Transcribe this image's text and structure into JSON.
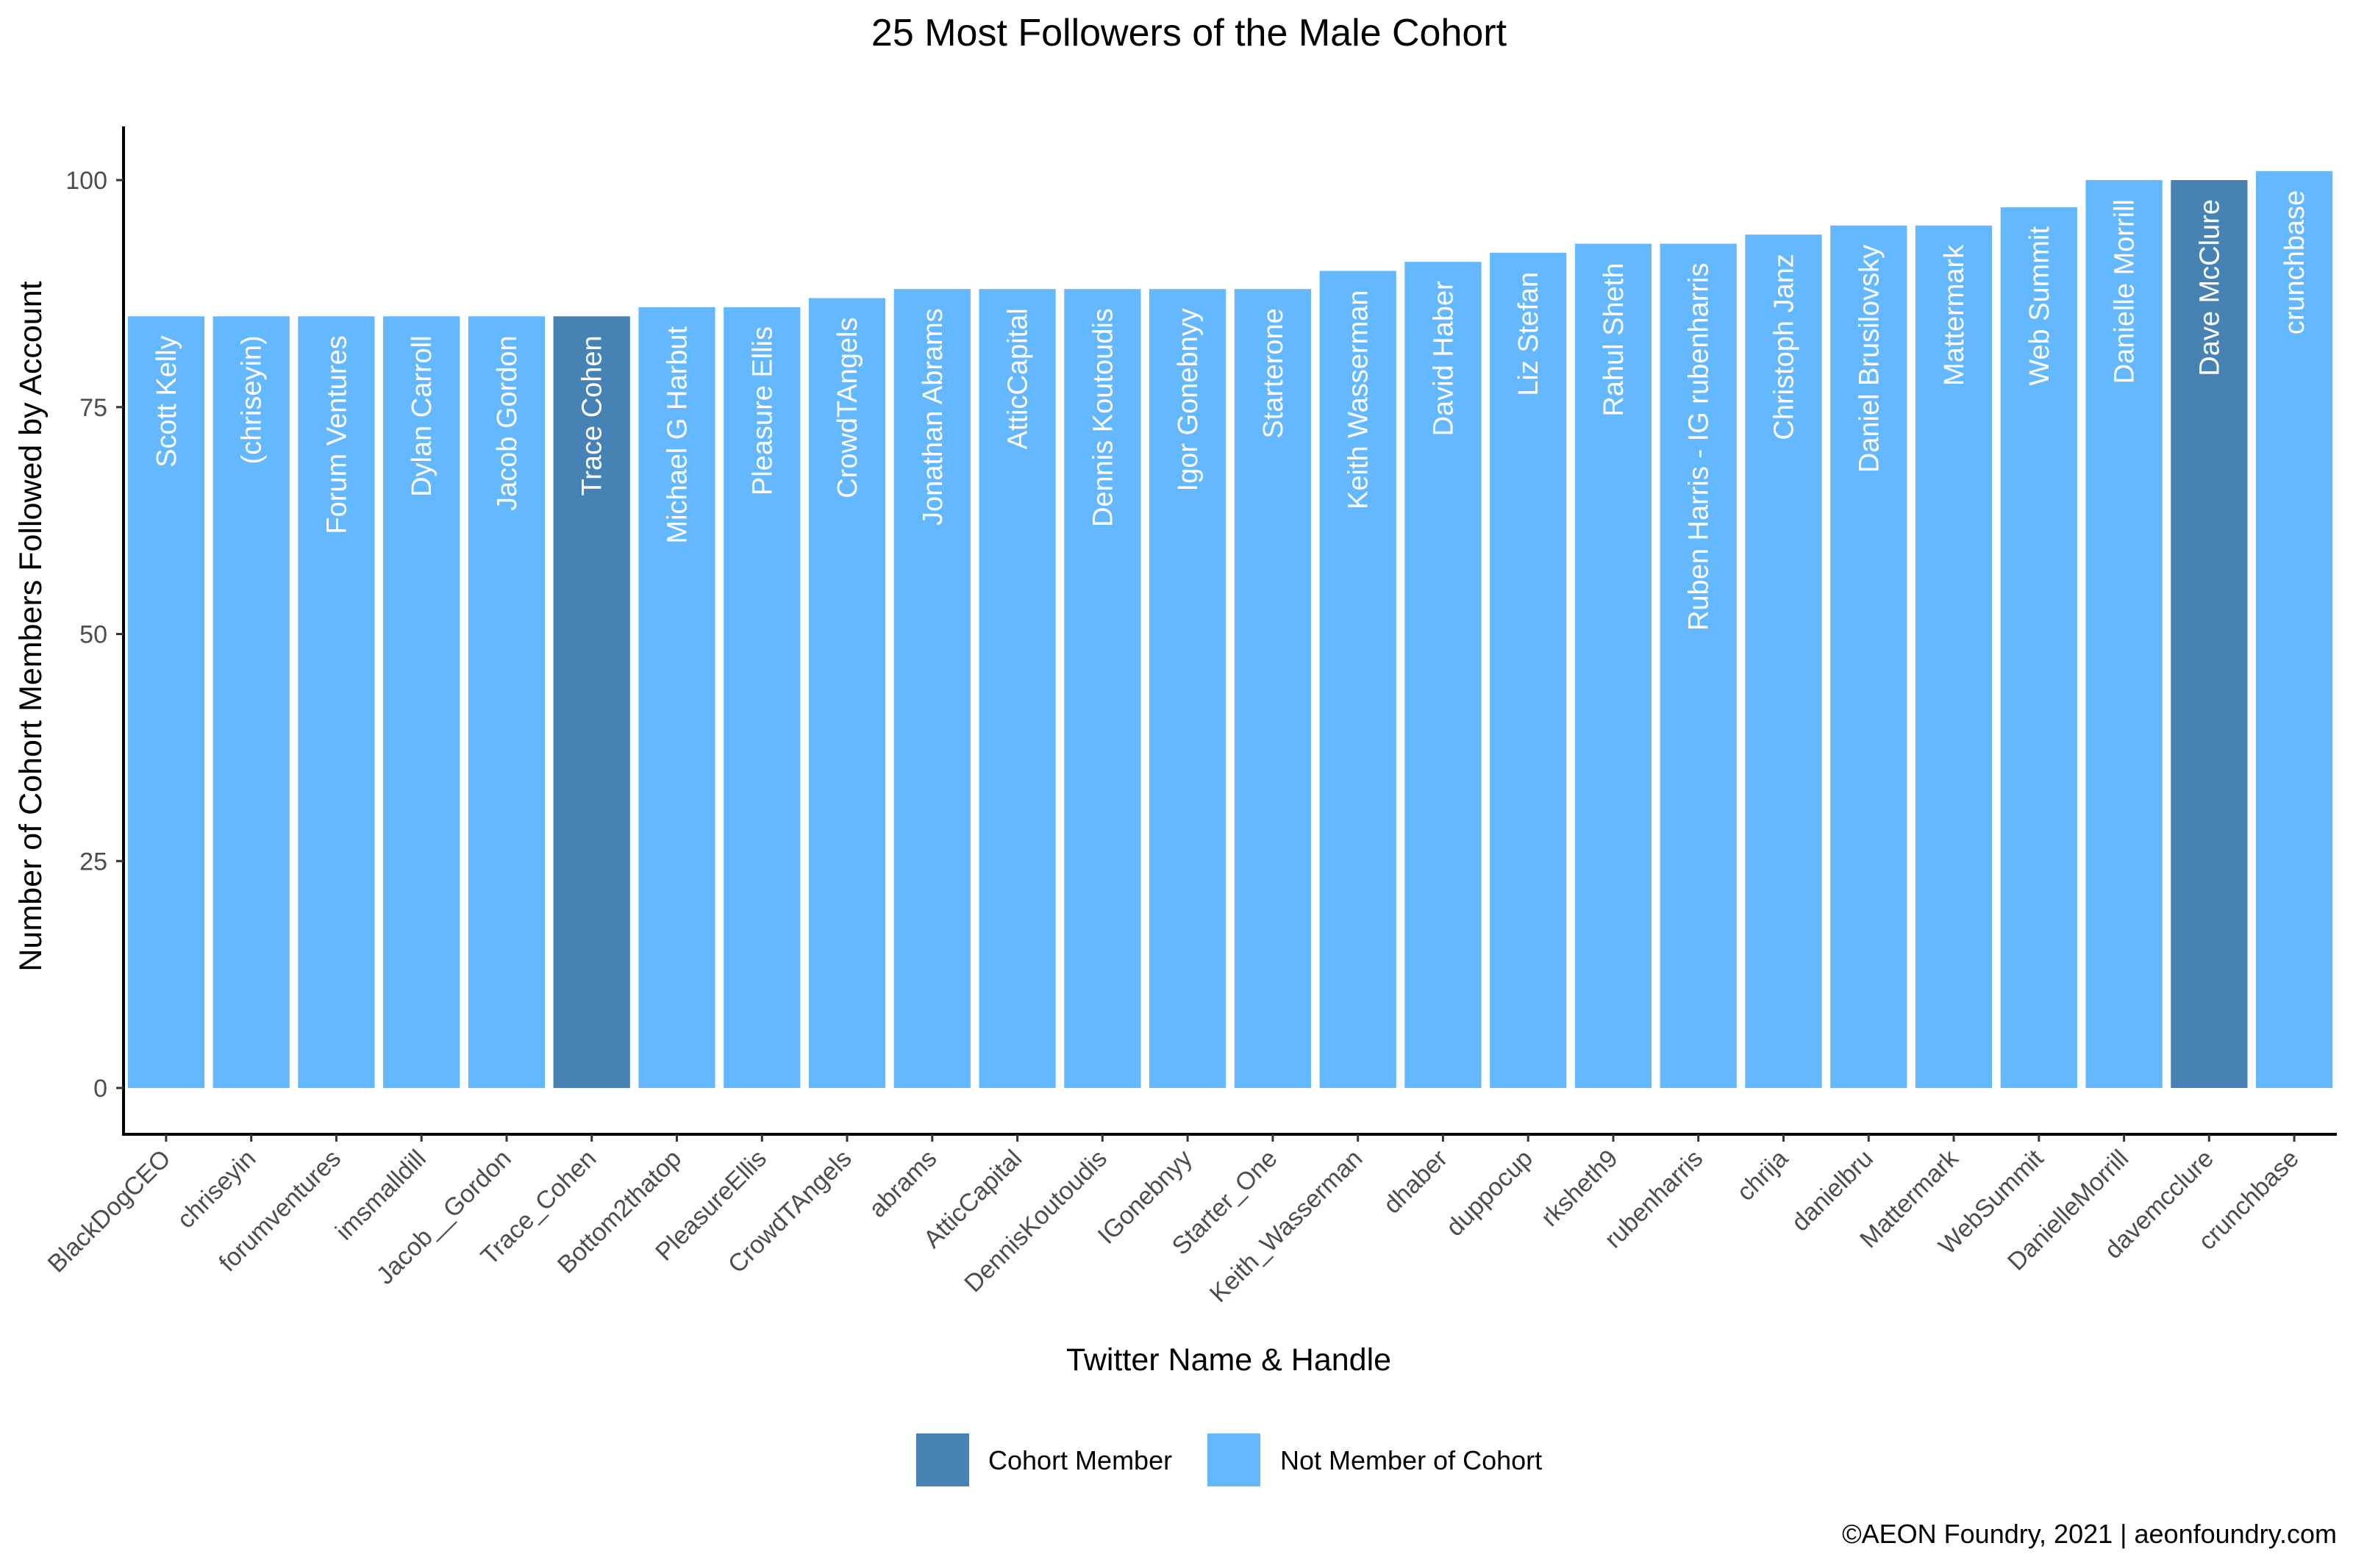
{
  "chart_data": {
    "type": "bar",
    "title": "25 Most Followers of the Male Cohort",
    "xlabel": "Twitter Name & Handle",
    "ylabel": "Number of Cohort Members Followed by Account",
    "ylim": [
      0,
      105
    ],
    "yticks": [
      0,
      25,
      50,
      75,
      100
    ],
    "grid": false,
    "legend_position": "bottom",
    "colors": {
      "cohort": "#4682B4",
      "not_cohort": "#63B8FF"
    },
    "legend": [
      {
        "key": "cohort",
        "label": "Cohort Member"
      },
      {
        "key": "not_cohort",
        "label": "Not Member of Cohort"
      }
    ],
    "bars": [
      {
        "handle": "BlackDogCEO",
        "name": "Scott Kelly",
        "value": 85,
        "group": "not_cohort"
      },
      {
        "handle": "chriseyin",
        "name": "(chriseyin)",
        "value": 85,
        "group": "not_cohort"
      },
      {
        "handle": "forumventures",
        "name": "Forum Ventures",
        "value": 85,
        "group": "not_cohort"
      },
      {
        "handle": "imsmalldill",
        "name": "Dylan Carroll",
        "value": 85,
        "group": "not_cohort"
      },
      {
        "handle": "Jacob__Gordon",
        "name": "Jacob Gordon",
        "value": 85,
        "group": "not_cohort"
      },
      {
        "handle": "Trace_Cohen",
        "name": "Trace Cohen",
        "value": 85,
        "group": "cohort"
      },
      {
        "handle": "Bottom2thatop",
        "name": "Michael G Harbut",
        "value": 86,
        "group": "not_cohort"
      },
      {
        "handle": "PleasureEllis",
        "name": "Pleasure Ellis",
        "value": 86,
        "group": "not_cohort"
      },
      {
        "handle": "CrowdTAngels",
        "name": "CrowdTAngels",
        "value": 87,
        "group": "not_cohort"
      },
      {
        "handle": "abrams",
        "name": "Jonathan Abrams",
        "value": 88,
        "group": "not_cohort"
      },
      {
        "handle": "AtticCapital",
        "name": "AtticCapital",
        "value": 88,
        "group": "not_cohort"
      },
      {
        "handle": "DennisKoutoudis",
        "name": "Dennis Koutoudis",
        "value": 88,
        "group": "not_cohort"
      },
      {
        "handle": "IGonebnyy",
        "name": "Igor Gonebnyy",
        "value": 88,
        "group": "not_cohort"
      },
      {
        "handle": "Starter_One",
        "name": "Starterone",
        "value": 88,
        "group": "not_cohort"
      },
      {
        "handle": "Keith_Wasserman",
        "name": "Keith Wasserman",
        "value": 90,
        "group": "not_cohort"
      },
      {
        "handle": "dhaber",
        "name": "David Haber",
        "value": 91,
        "group": "not_cohort"
      },
      {
        "handle": "duppocup",
        "name": "Liz Stefan",
        "value": 92,
        "group": "not_cohort"
      },
      {
        "handle": "rksheth9",
        "name": "Rahul Sheth",
        "value": 93,
        "group": "not_cohort"
      },
      {
        "handle": "rubenharris",
        "name": "Ruben Harris - IG rubenharris",
        "value": 93,
        "group": "not_cohort"
      },
      {
        "handle": "chrija",
        "name": "Christoph Janz",
        "value": 94,
        "group": "not_cohort"
      },
      {
        "handle": "danielbru",
        "name": "Daniel Brusilovsky",
        "value": 95,
        "group": "not_cohort"
      },
      {
        "handle": "Mattermark",
        "name": "Mattermark",
        "value": 95,
        "group": "not_cohort"
      },
      {
        "handle": "WebSummit",
        "name": "Web Summit",
        "value": 97,
        "group": "not_cohort"
      },
      {
        "handle": "DanielleMorrill",
        "name": "Danielle Morrill",
        "value": 100,
        "group": "not_cohort"
      },
      {
        "handle": "davemcclure",
        "name": "Dave McClure",
        "value": 100,
        "group": "cohort"
      },
      {
        "handle": "crunchbase",
        "name": "crunchbase",
        "value": 101,
        "group": "not_cohort"
      }
    ]
  },
  "caption": "©AEON Foundry, 2021 | aeonfoundry.com"
}
